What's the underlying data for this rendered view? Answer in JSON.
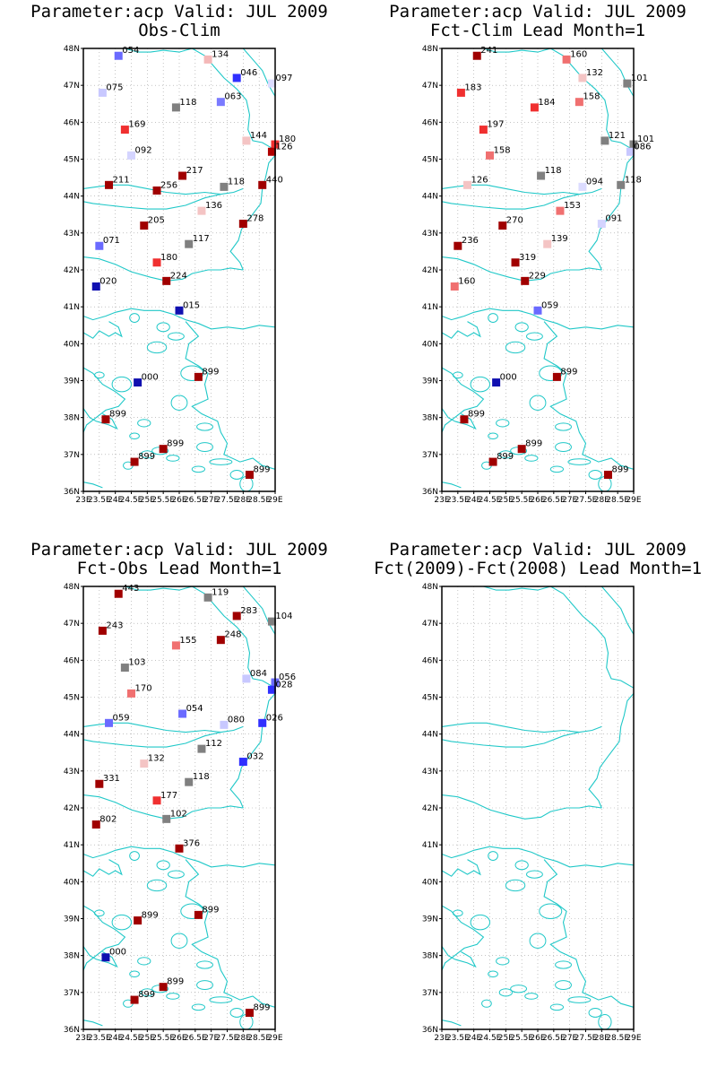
{
  "panels": [
    {
      "title_line1": "Parameter:acp Valid: JUL 2009",
      "title_line2": "Obs-Clim",
      "stations": [
        {
          "lat": 47.8,
          "lon": 24.1,
          "label": "054",
          "color": "#6a6aff"
        },
        {
          "lat": 47.7,
          "lon": 26.9,
          "label": "134",
          "color": "#f4b8b8"
        },
        {
          "lat": 47.2,
          "lon": 27.8,
          "label": "046",
          "color": "#3030ff"
        },
        {
          "lat": 47.05,
          "lon": 28.9,
          "label": "097",
          "color": "#dcdcff"
        },
        {
          "lat": 46.8,
          "lon": 23.6,
          "label": "075",
          "color": "#c8c8ff"
        },
        {
          "lat": 46.55,
          "lon": 27.3,
          "label": "063",
          "color": "#7a7aff"
        },
        {
          "lat": 46.4,
          "lon": 25.9,
          "label": "118",
          "color": "#808080"
        },
        {
          "lat": 45.8,
          "lon": 24.3,
          "label": "169",
          "color": "#f03030"
        },
        {
          "lat": 45.5,
          "lon": 28.1,
          "label": "144",
          "color": "#f4c4c4"
        },
        {
          "lat": 45.4,
          "lon": 29.0,
          "label": "180",
          "color": "#f03030"
        },
        {
          "lat": 45.2,
          "lon": 28.9,
          "label": "126",
          "color": "#b00000"
        },
        {
          "lat": 45.1,
          "lon": 24.5,
          "label": "092",
          "color": "#d4d4ff"
        },
        {
          "lat": 44.55,
          "lon": 26.1,
          "label": "217",
          "color": "#a00000"
        },
        {
          "lat": 44.3,
          "lon": 23.8,
          "label": "211",
          "color": "#a00000"
        },
        {
          "lat": 44.3,
          "lon": 28.6,
          "label": "440",
          "color": "#a00000"
        },
        {
          "lat": 44.25,
          "lon": 27.4,
          "label": "118",
          "color": "#808080"
        },
        {
          "lat": 44.15,
          "lon": 25.3,
          "label": "256",
          "color": "#a00000"
        },
        {
          "lat": 43.6,
          "lon": 26.7,
          "label": "136",
          "color": "#f4c4c4"
        },
        {
          "lat": 43.25,
          "lon": 28.0,
          "label": "278",
          "color": "#a00000"
        },
        {
          "lat": 43.2,
          "lon": 24.9,
          "label": "205",
          "color": "#a00000"
        },
        {
          "lat": 42.7,
          "lon": 26.3,
          "label": "117",
          "color": "#808080"
        },
        {
          "lat": 42.65,
          "lon": 23.5,
          "label": "071",
          "color": "#6a6aff"
        },
        {
          "lat": 42.2,
          "lon": 25.3,
          "label": "180",
          "color": "#f03030"
        },
        {
          "lat": 41.7,
          "lon": 25.6,
          "label": "224",
          "color": "#a00000"
        },
        {
          "lat": 41.55,
          "lon": 23.4,
          "label": "020",
          "color": "#1010b0"
        },
        {
          "lat": 40.9,
          "lon": 26.0,
          "label": "015",
          "color": "#1010b0"
        },
        {
          "lat": 39.1,
          "lon": 26.6,
          "label": "899",
          "color": "#a00000"
        },
        {
          "lat": 38.95,
          "lon": 24.7,
          "label": "000",
          "color": "#1010b0"
        },
        {
          "lat": 37.95,
          "lon": 23.7,
          "label": "899",
          "color": "#a00000"
        },
        {
          "lat": 37.15,
          "lon": 25.5,
          "label": "899",
          "color": "#a00000"
        },
        {
          "lat": 36.8,
          "lon": 24.6,
          "label": "899",
          "color": "#a00000"
        },
        {
          "lat": 36.45,
          "lon": 28.2,
          "label": "899",
          "color": "#a00000"
        }
      ]
    },
    {
      "title_line1": "Parameter:acp Valid: JUL 2009",
      "title_line2": "Fct-Clim Lead Month=1",
      "stations": [
        {
          "lat": 47.8,
          "lon": 24.1,
          "label": "241",
          "color": "#a00000"
        },
        {
          "lat": 47.7,
          "lon": 26.9,
          "label": "160",
          "color": "#f07070"
        },
        {
          "lat": 47.2,
          "lon": 27.4,
          "label": "132",
          "color": "#f4c4c4"
        },
        {
          "lat": 47.05,
          "lon": 28.8,
          "label": "101",
          "color": "#808080"
        },
        {
          "lat": 46.8,
          "lon": 23.6,
          "label": "183",
          "color": "#f03030"
        },
        {
          "lat": 46.55,
          "lon": 27.3,
          "label": "158",
          "color": "#f07070"
        },
        {
          "lat": 46.4,
          "lon": 25.9,
          "label": "184",
          "color": "#f03030"
        },
        {
          "lat": 45.8,
          "lon": 24.3,
          "label": "197",
          "color": "#f03030"
        },
        {
          "lat": 45.5,
          "lon": 28.1,
          "label": "121",
          "color": "#808080"
        },
        {
          "lat": 45.4,
          "lon": 29.0,
          "label": "101",
          "color": "#808080"
        },
        {
          "lat": 45.2,
          "lon": 28.9,
          "label": "086",
          "color": "#c8c8ff"
        },
        {
          "lat": 45.1,
          "lon": 24.5,
          "label": "158",
          "color": "#f07070"
        },
        {
          "lat": 44.55,
          "lon": 26.1,
          "label": "118",
          "color": "#808080"
        },
        {
          "lat": 44.3,
          "lon": 23.8,
          "label": "126",
          "color": "#f4c4c4"
        },
        {
          "lat": 44.3,
          "lon": 28.6,
          "label": "118",
          "color": "#808080"
        },
        {
          "lat": 44.25,
          "lon": 27.4,
          "label": "094",
          "color": "#dcdcff"
        },
        {
          "lat": 43.6,
          "lon": 26.7,
          "label": "153",
          "color": "#f07070"
        },
        {
          "lat": 43.25,
          "lon": 28.0,
          "label": "091",
          "color": "#d4d4ff"
        },
        {
          "lat": 43.2,
          "lon": 24.9,
          "label": "270",
          "color": "#a00000"
        },
        {
          "lat": 42.7,
          "lon": 26.3,
          "label": "139",
          "color": "#f4c4c4"
        },
        {
          "lat": 42.65,
          "lon": 23.5,
          "label": "236",
          "color": "#a00000"
        },
        {
          "lat": 42.2,
          "lon": 25.3,
          "label": "319",
          "color": "#a00000"
        },
        {
          "lat": 41.7,
          "lon": 25.6,
          "label": "229",
          "color": "#a00000"
        },
        {
          "lat": 41.55,
          "lon": 23.4,
          "label": "160",
          "color": "#f07070"
        },
        {
          "lat": 40.9,
          "lon": 26.0,
          "label": "059",
          "color": "#6a6aff"
        },
        {
          "lat": 39.1,
          "lon": 26.6,
          "label": "899",
          "color": "#a00000"
        },
        {
          "lat": 38.95,
          "lon": 24.7,
          "label": "000",
          "color": "#1010b0"
        },
        {
          "lat": 37.95,
          "lon": 23.7,
          "label": "899",
          "color": "#a00000"
        },
        {
          "lat": 37.15,
          "lon": 25.5,
          "label": "899",
          "color": "#a00000"
        },
        {
          "lat": 36.8,
          "lon": 24.6,
          "label": "899",
          "color": "#a00000"
        },
        {
          "lat": 36.45,
          "lon": 28.2,
          "label": "899",
          "color": "#a00000"
        }
      ]
    },
    {
      "title_line1": "Parameter:acp Valid: JUL 2009",
      "title_line2": "Fct-Obs Lead Month=1",
      "stations": [
        {
          "lat": 47.8,
          "lon": 24.1,
          "label": "443",
          "color": "#a00000"
        },
        {
          "lat": 47.7,
          "lon": 26.9,
          "label": "119",
          "color": "#808080"
        },
        {
          "lat": 47.2,
          "lon": 27.8,
          "label": "283",
          "color": "#a00000"
        },
        {
          "lat": 47.05,
          "lon": 28.9,
          "label": "104",
          "color": "#808080"
        },
        {
          "lat": 46.8,
          "lon": 23.6,
          "label": "243",
          "color": "#a00000"
        },
        {
          "lat": 46.55,
          "lon": 27.3,
          "label": "248",
          "color": "#a00000"
        },
        {
          "lat": 46.4,
          "lon": 25.9,
          "label": "155",
          "color": "#f07070"
        },
        {
          "lat": 45.8,
          "lon": 24.3,
          "label": "103",
          "color": "#808080"
        },
        {
          "lat": 45.5,
          "lon": 28.1,
          "label": "084",
          "color": "#c8c8ff"
        },
        {
          "lat": 45.4,
          "lon": 29.0,
          "label": "056",
          "color": "#6a6aff"
        },
        {
          "lat": 45.2,
          "lon": 28.9,
          "label": "028",
          "color": "#3030ff"
        },
        {
          "lat": 45.1,
          "lon": 24.5,
          "label": "170",
          "color": "#f07070"
        },
        {
          "lat": 44.55,
          "lon": 26.1,
          "label": "054",
          "color": "#6a6aff"
        },
        {
          "lat": 44.3,
          "lon": 23.8,
          "label": "059",
          "color": "#6a6aff"
        },
        {
          "lat": 44.3,
          "lon": 28.6,
          "label": "026",
          "color": "#3030ff"
        },
        {
          "lat": 44.25,
          "lon": 27.4,
          "label": "080",
          "color": "#c8c8ff"
        },
        {
          "lat": 43.6,
          "lon": 26.7,
          "label": "112",
          "color": "#808080"
        },
        {
          "lat": 43.25,
          "lon": 28.0,
          "label": "032",
          "color": "#3030ff"
        },
        {
          "lat": 43.2,
          "lon": 24.9,
          "label": "132",
          "color": "#f4c4c4"
        },
        {
          "lat": 42.7,
          "lon": 26.3,
          "label": "118",
          "color": "#808080"
        },
        {
          "lat": 42.65,
          "lon": 23.5,
          "label": "331",
          "color": "#a00000"
        },
        {
          "lat": 42.2,
          "lon": 25.3,
          "label": "177",
          "color": "#f03030"
        },
        {
          "lat": 41.7,
          "lon": 25.6,
          "label": "102",
          "color": "#808080"
        },
        {
          "lat": 41.55,
          "lon": 23.4,
          "label": "802",
          "color": "#a00000"
        },
        {
          "lat": 40.9,
          "lon": 26.0,
          "label": "376",
          "color": "#a00000"
        },
        {
          "lat": 39.1,
          "lon": 26.6,
          "label": "899",
          "color": "#a00000"
        },
        {
          "lat": 38.95,
          "lon": 24.7,
          "label": "899",
          "color": "#a00000"
        },
        {
          "lat": 37.95,
          "lon": 23.7,
          "label": "000",
          "color": "#1010b0"
        },
        {
          "lat": 37.15,
          "lon": 25.5,
          "label": "899",
          "color": "#a00000"
        },
        {
          "lat": 36.8,
          "lon": 24.6,
          "label": "899",
          "color": "#a00000"
        },
        {
          "lat": 36.45,
          "lon": 28.2,
          "label": "899",
          "color": "#a00000"
        }
      ]
    },
    {
      "title_line1": "Parameter:acp Valid: JUL 2009",
      "title_line2": "Fct(2009)-Fct(2008) Lead Month=1",
      "stations": []
    }
  ],
  "axes": {
    "lat_labels": [
      "48N",
      "47N",
      "46N",
      "45N",
      "44N",
      "43N",
      "42N",
      "41N",
      "40N",
      "39N",
      "38N",
      "37N",
      "36N"
    ],
    "lon_labels": [
      "23E",
      "23.5E",
      "24E",
      "24.5E",
      "25E",
      "25.5E",
      "26E",
      "26.5E",
      "27E",
      "27.5E",
      "28E",
      "28.5E",
      "29E"
    ],
    "lat_values": [
      48,
      47,
      46,
      45,
      44,
      43,
      42,
      41,
      40,
      39,
      38,
      37,
      36
    ],
    "lon_values": [
      23,
      23.5,
      24,
      24.5,
      25,
      25.5,
      26,
      26.5,
      27,
      27.5,
      28,
      28.5,
      29
    ]
  },
  "colors": {
    "coastline": "#20c8c8",
    "grid": "#a0a0a0",
    "frame": "#000000"
  }
}
